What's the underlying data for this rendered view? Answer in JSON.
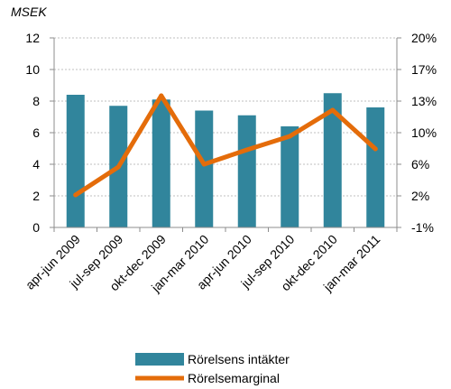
{
  "chart_data": {
    "type": "bar",
    "categories": [
      "apr-jun 2009",
      "jul-sep 2009",
      "okt-dec 2009",
      "jan-mar 2010",
      "apr-jun 2010",
      "jul-sep 2010",
      "okt-dec 2010",
      "jan-mar 2011"
    ],
    "y_unit_label": "MSEK",
    "ylim": [
      0,
      12
    ],
    "yticks": [
      "0",
      "2",
      "4",
      "6",
      "8",
      "10",
      "12"
    ],
    "y2lim": [
      -1,
      20
    ],
    "y2ticks": [
      "-1%",
      "2%",
      "6%",
      "10%",
      "13%",
      "17%",
      "20%"
    ],
    "grid": true,
    "legend_position": "bottom",
    "series": [
      {
        "name": "Rörelsens intäkter",
        "type": "bar",
        "axis": "left",
        "color": "#31859C",
        "values": [
          8.4,
          7.7,
          8.1,
          7.4,
          7.1,
          6.4,
          8.5,
          7.6
        ]
      },
      {
        "name": "Rörelsemarginal",
        "type": "line",
        "axis": "right",
        "color": "#E46C0A",
        "values": [
          2.6,
          5.7,
          13.6,
          6.0,
          7.6,
          9.1,
          12.0,
          7.7
        ]
      }
    ]
  }
}
